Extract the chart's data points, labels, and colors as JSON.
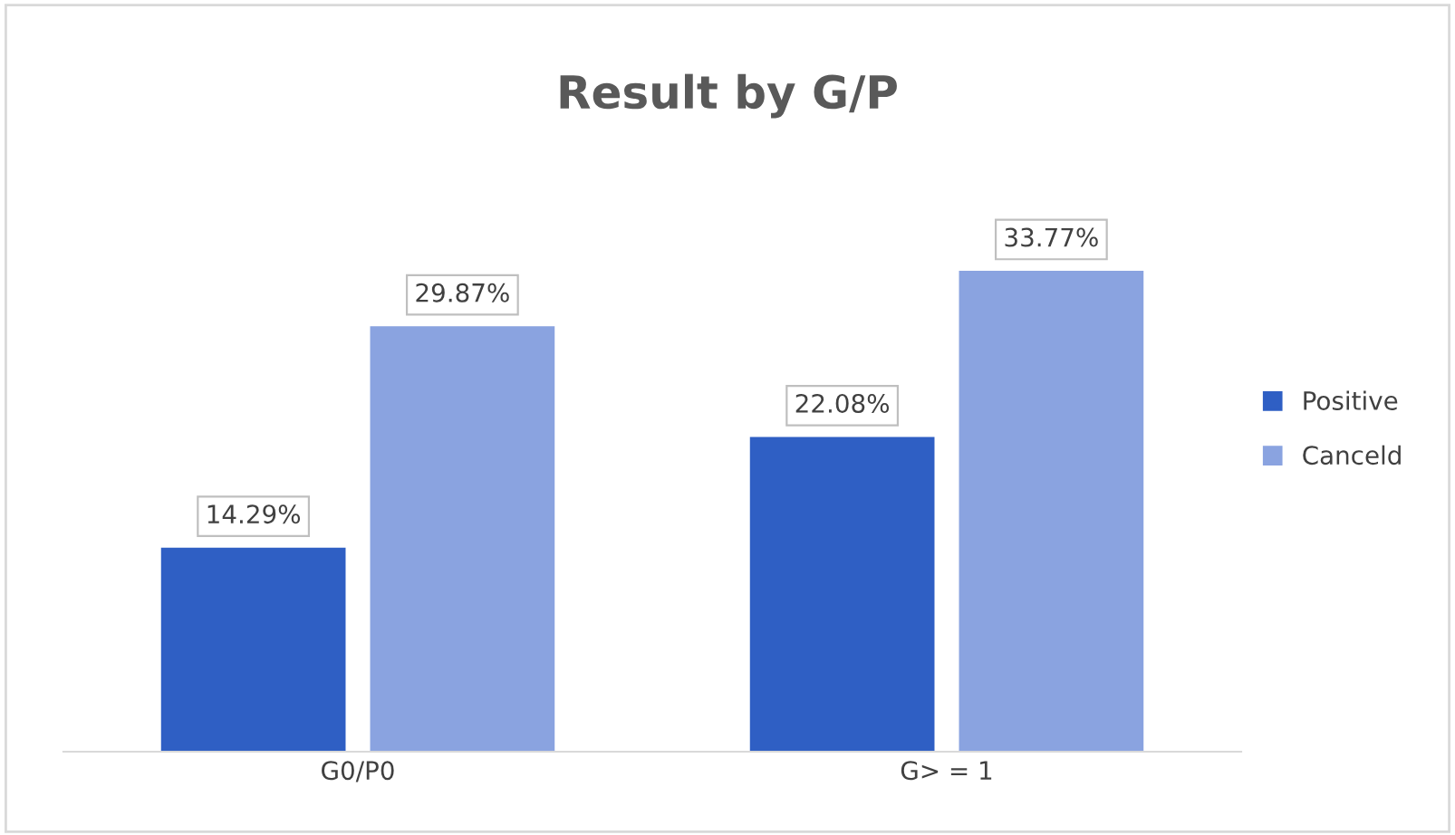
{
  "chart_data": {
    "type": "bar",
    "title": "Result by G/P",
    "categories": [
      "G0/P0",
      "G> = 1"
    ],
    "series": [
      {
        "name": "Positive",
        "color": "#2f5fc4",
        "values": [
          14.29,
          22.08
        ],
        "value_labels": [
          "14.29%",
          "22.08%"
        ]
      },
      {
        "name": "Canceld",
        "color": "#8aa3e0",
        "values": [
          29.87,
          33.77
        ],
        "value_labels": [
          "29.87%",
          "33.77%"
        ]
      }
    ],
    "legend": "right",
    "grid": false
  }
}
